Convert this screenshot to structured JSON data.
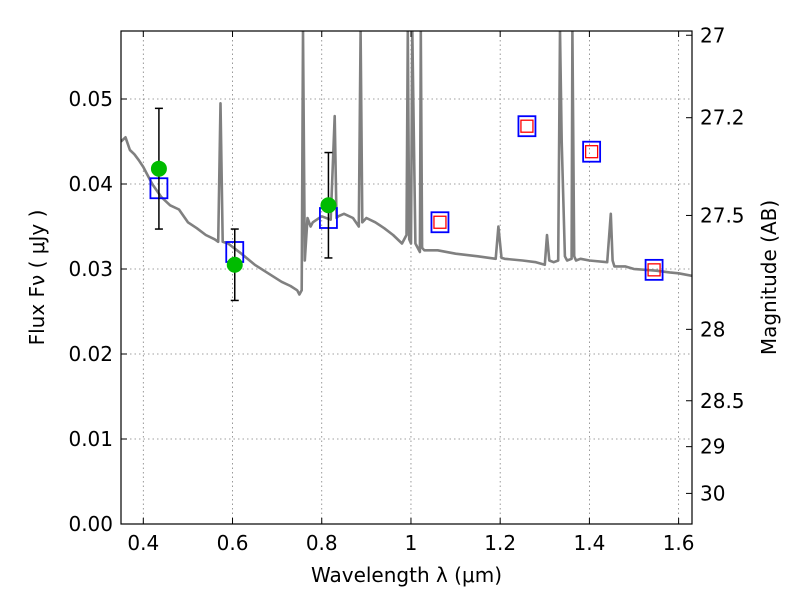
{
  "chart_data": {
    "type": "line",
    "xlabel": "Wavelength  λ (μm)",
    "ylabel": "Flux  Fν  ( μJy )",
    "y2label": "Magnitude (AB)",
    "xlim": [
      0.35,
      1.63
    ],
    "ylim": [
      0.0,
      0.058
    ],
    "grid": true,
    "x_ticks": [
      0.4,
      0.6,
      0.8,
      1.0,
      1.2,
      1.4,
      1.6
    ],
    "x_tick_labels": [
      "0.4",
      "0.6",
      "0.8",
      "1",
      "1.2",
      "1.4",
      "1.6"
    ],
    "y_ticks": [
      0.0,
      0.01,
      0.02,
      0.03,
      0.04,
      0.05
    ],
    "y_tick_labels": [
      "0.00",
      "0.01",
      "0.02",
      "0.03",
      "0.04",
      "0.05"
    ],
    "y2_ticks": [
      {
        "flux": 0.0575,
        "label": "27"
      },
      {
        "flux": 0.0478,
        "label": "27.2"
      },
      {
        "flux": 0.0363,
        "label": "27.5"
      },
      {
        "flux": 0.0229,
        "label": "28"
      },
      {
        "flux": 0.0145,
        "label": "28.5"
      },
      {
        "flux": 0.0091,
        "label": "29"
      },
      {
        "flux": 0.0036,
        "label": "30"
      }
    ],
    "colors": {
      "model": "#808080",
      "observed": "#00bb00",
      "errorbar": "#000000",
      "model_box": "#0000ff",
      "upper_box": "#ff0000"
    },
    "series": [
      {
        "x": [
          0.35,
          0.36,
          0.37,
          0.38,
          0.39,
          0.4,
          0.42,
          0.44,
          0.46,
          0.48,
          0.5,
          0.52,
          0.54,
          0.56,
          0.568,
          0.573,
          0.578,
          0.59,
          0.62,
          0.65,
          0.68,
          0.71,
          0.73,
          0.745,
          0.75,
          0.755,
          0.758,
          0.762,
          0.768,
          0.775,
          0.78,
          0.8,
          0.82,
          0.829,
          0.833,
          0.837,
          0.85,
          0.87,
          0.883,
          0.887,
          0.891,
          0.9,
          0.92,
          0.94,
          0.96,
          0.98,
          0.99,
          0.993,
          0.996,
          1.0,
          1.003,
          1.01,
          1.02,
          1.022,
          1.025,
          1.03,
          1.06,
          1.1,
          1.15,
          1.19,
          1.196,
          1.203,
          1.21,
          1.25,
          1.28,
          1.3,
          1.305,
          1.31,
          1.32,
          1.33,
          1.334,
          1.338,
          1.345,
          1.35,
          1.36,
          1.362,
          1.366,
          1.37,
          1.38,
          1.4,
          1.44,
          1.448,
          1.452,
          1.456,
          1.46,
          1.48,
          1.5,
          1.55,
          1.58,
          1.6,
          1.63
        ],
        "y": [
          0.045,
          0.0455,
          0.044,
          0.0435,
          0.0428,
          0.042,
          0.04,
          0.0385,
          0.0375,
          0.037,
          0.0355,
          0.0348,
          0.034,
          0.0335,
          0.0332,
          0.0495,
          0.0332,
          0.033,
          0.0318,
          0.0305,
          0.0295,
          0.0285,
          0.028,
          0.0275,
          0.027,
          0.0275,
          0.058,
          0.031,
          0.036,
          0.035,
          0.0355,
          0.0362,
          0.0358,
          0.048,
          0.036,
          0.0362,
          0.0365,
          0.036,
          0.035,
          0.058,
          0.0355,
          0.036,
          0.0355,
          0.0348,
          0.034,
          0.033,
          0.034,
          0.058,
          0.0335,
          0.033,
          0.058,
          0.033,
          0.032,
          0.058,
          0.0325,
          0.0322,
          0.0322,
          0.0318,
          0.0315,
          0.0312,
          0.035,
          0.0313,
          0.0312,
          0.031,
          0.0308,
          0.0305,
          0.034,
          0.031,
          0.0308,
          0.031,
          0.058,
          0.045,
          0.0315,
          0.031,
          0.0312,
          0.058,
          0.0315,
          0.031,
          0.0312,
          0.031,
          0.0308,
          0.0365,
          0.031,
          0.0303,
          0.0303,
          0.0303,
          0.03,
          0.0298,
          0.0296,
          0.0295,
          0.0292
        ]
      },
      {
        "x": [
          0.435,
          0.605,
          0.815
        ],
        "y": [
          0.0418,
          0.0305,
          0.0375
        ],
        "yerr": [
          0.0071,
          0.0042,
          0.0062
        ]
      },
      {
        "x": [
          0.435,
          0.605,
          0.815,
          1.065,
          1.26,
          1.405,
          1.545
        ],
        "y": [
          0.0395,
          0.032,
          0.036,
          0.0355,
          0.0468,
          0.0438,
          0.0299
        ]
      },
      {
        "x": [
          1.065,
          1.26,
          1.405,
          1.545
        ],
        "y": [
          0.0355,
          0.0468,
          0.0438,
          0.0299
        ]
      }
    ]
  }
}
